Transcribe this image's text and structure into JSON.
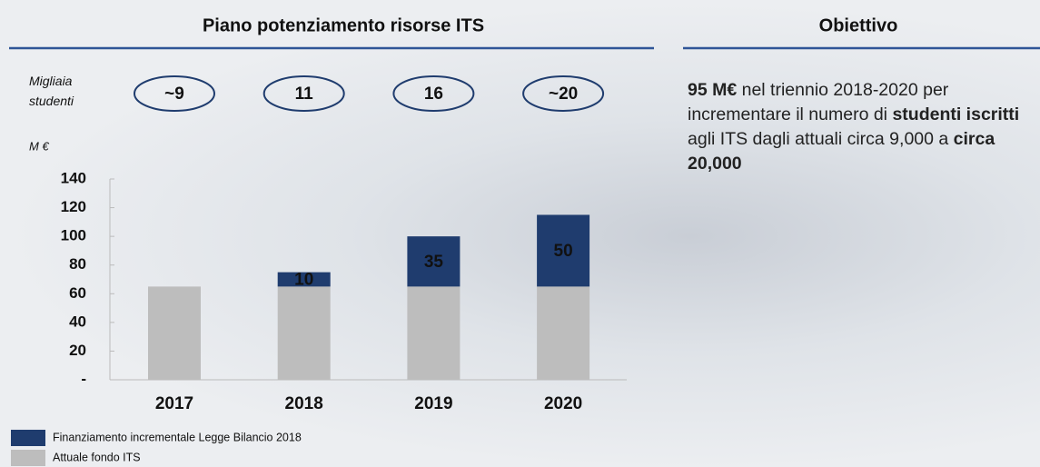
{
  "chart_data": {
    "type": "stacked_bar",
    "title": "Piano potenziamento risorse ITS",
    "students_label": "Migliaia studenti",
    "students": [
      "~9",
      "11",
      "16",
      "~20"
    ],
    "y_label": "M €",
    "categories": [
      "2017",
      "2018",
      "2019",
      "2020"
    ],
    "series": [
      {
        "name": "Finanziamento incrementale Legge Bilancio 2018",
        "color": "#1f3c6e",
        "values": [
          null,
          10,
          35,
          50
        ]
      },
      {
        "name": "Attuale fondo ITS",
        "color": "#bdbdbd",
        "values": [
          65,
          65,
          65,
          65
        ]
      }
    ],
    "ylim": [
      0,
      140
    ],
    "yticks": [
      {
        "value": 0,
        "label": "-"
      },
      20,
      40,
      60,
      80,
      100,
      120,
      140
    ]
  },
  "objective": {
    "title": "Obiettivo",
    "runs": [
      {
        "text": "95 M€",
        "bold": true
      },
      {
        "text": " nel triennio 2018-2020 per incrementare il numero di ",
        "bold": false
      },
      {
        "text": "studenti iscritti",
        "bold": true
      },
      {
        "text": " agli ITS dagli attuali circa 9,000 a ",
        "bold": false
      },
      {
        "text": "circa 20,000",
        "bold": true
      }
    ]
  }
}
